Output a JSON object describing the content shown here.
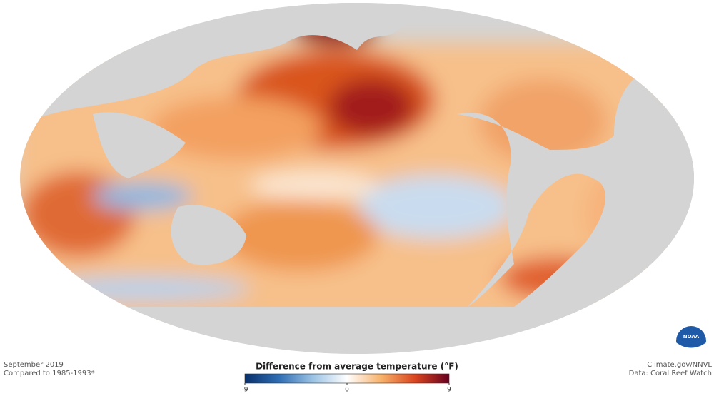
{
  "map": {
    "date": "September 2019",
    "baseline": "Compared to 1985-1993*"
  },
  "legend": {
    "title": "Difference from average temperature (°F)",
    "lim": [
      -9,
      9
    ],
    "ticks": [
      -9,
      0,
      9
    ],
    "colors": [
      "#08306b",
      "#2f6db3",
      "#9cc3e4",
      "#ffffff",
      "#f7b26b",
      "#d9451f",
      "#67001f"
    ]
  },
  "credits": {
    "source": "Climate.gov/NNVL",
    "data": "Data: Coral Reef Watch",
    "logo": "NOAA"
  }
}
